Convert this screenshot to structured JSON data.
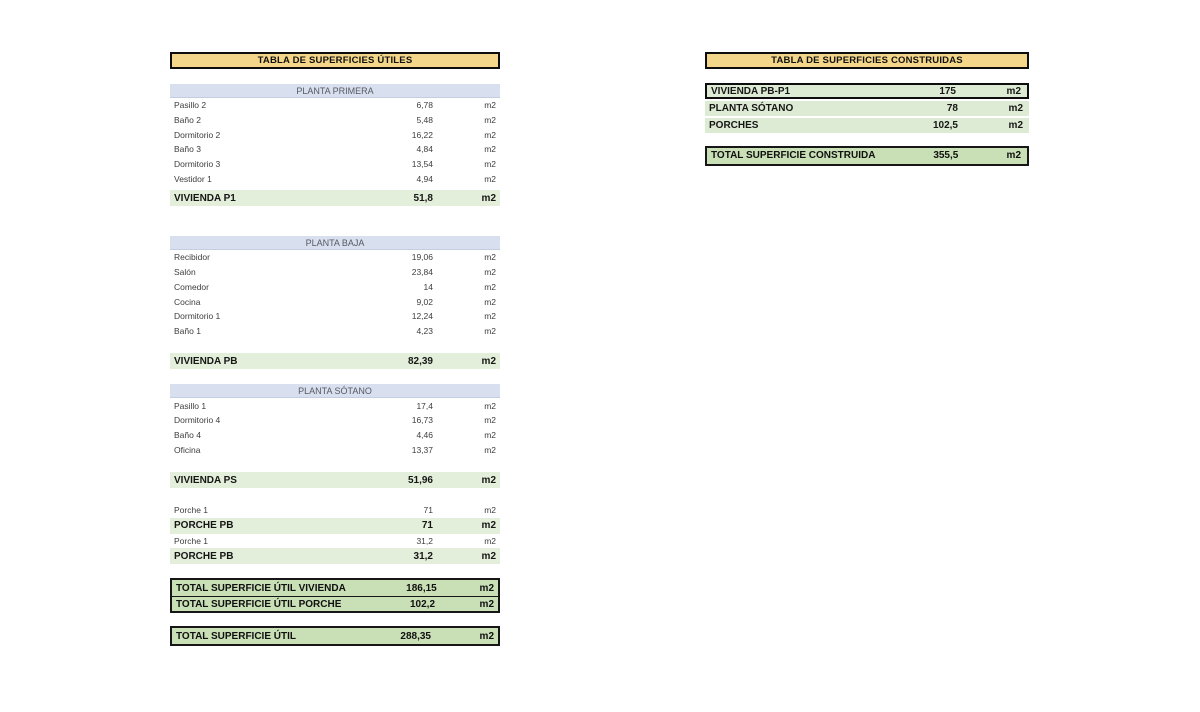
{
  "left_table": {
    "title": "TABLA DE SUPERFICIES ÚTILES",
    "blocks": [
      {
        "kind": "section",
        "label": "PLANTA PRIMERA",
        "gap_before": 15
      },
      {
        "kind": "data",
        "label": "Pasillo 2",
        "value": "6,78",
        "unit": "m2"
      },
      {
        "kind": "data",
        "label": "Baño 2",
        "value": "5,48",
        "unit": "m2"
      },
      {
        "kind": "data",
        "label": "Dormitorio 2",
        "value": "16,22",
        "unit": "m2"
      },
      {
        "kind": "data",
        "label": "Baño 3",
        "value": "4,84",
        "unit": "m2"
      },
      {
        "kind": "data",
        "label": "Dormitorio 3",
        "value": "13,54",
        "unit": "m2"
      },
      {
        "kind": "data",
        "label": "Vestidor 1",
        "value": "4,94",
        "unit": "m2"
      },
      {
        "kind": "subtotal",
        "label": "VIVIENDA P1",
        "value": "51,8",
        "unit": "m2",
        "gap_before": 4
      },
      {
        "kind": "section",
        "label": "PLANTA BAJA",
        "gap_before": 30
      },
      {
        "kind": "data",
        "label": "Recibidor",
        "value": "19,06",
        "unit": "m2"
      },
      {
        "kind": "data",
        "label": "Salón",
        "value": "23,84",
        "unit": "m2"
      },
      {
        "kind": "data",
        "label": "Comedor",
        "value": "14",
        "unit": "m2"
      },
      {
        "kind": "data",
        "label": "Cocina",
        "value": "9,02",
        "unit": "m2"
      },
      {
        "kind": "data",
        "label": "Dormitorio 1",
        "value": "12,24",
        "unit": "m2"
      },
      {
        "kind": "data",
        "label": "Baño 1",
        "value": "4,23",
        "unit": "m2"
      },
      {
        "kind": "subtotal",
        "label": "VIVIENDA PB",
        "value": "82,39",
        "unit": "m2",
        "gap_before": 15
      },
      {
        "kind": "section",
        "label": "PLANTA SÓTANO",
        "gap_before": 15
      },
      {
        "kind": "data",
        "label": "Pasillo 1",
        "value": "17,4",
        "unit": "m2"
      },
      {
        "kind": "data",
        "label": "Dormitorio 4",
        "value": "16,73",
        "unit": "m2"
      },
      {
        "kind": "data",
        "label": "Baño 4",
        "value": "4,46",
        "unit": "m2"
      },
      {
        "kind": "data",
        "label": "Oficina",
        "value": "13,37",
        "unit": "m2"
      },
      {
        "kind": "subtotal",
        "label": "VIVIENDA PS",
        "value": "51,96",
        "unit": "m2",
        "gap_before": 15
      },
      {
        "kind": "data",
        "label": "Porche 1",
        "value": "71",
        "unit": "m2",
        "gap_before": 15
      },
      {
        "kind": "subtotal",
        "label": "PORCHE PB",
        "value": "71",
        "unit": "m2"
      },
      {
        "kind": "data",
        "label": "Porche 1",
        "value": "31,2",
        "unit": "m2"
      },
      {
        "kind": "subtotal",
        "label": "PORCHE PB",
        "value": "31,2",
        "unit": "m2"
      },
      {
        "kind": "total-group",
        "gap_before": 14,
        "rows": [
          {
            "label": "TOTAL SUPERFICIE ÚTIL VIVIENDA",
            "value": "186,15",
            "unit": "m2"
          },
          {
            "label": "TOTAL SUPERFICIE ÚTIL PORCHE",
            "value": "102,2",
            "unit": "m2"
          }
        ]
      },
      {
        "kind": "total-group",
        "gap_before": 13,
        "rows": [
          {
            "label": "TOTAL SUPERFICIE ÚTIL",
            "value": "288,35",
            "unit": "m2"
          }
        ]
      }
    ]
  },
  "right_table": {
    "title": "TABLA DE SUPERFICIES CONSTRUIDAS",
    "blocks": [
      {
        "kind": "row-bordered",
        "label": "VIVIENDA PB-P1",
        "value": "175",
        "unit": "m2",
        "gap_before": 14
      },
      {
        "kind": "row",
        "label": "PLANTA SÓTANO",
        "value": "78",
        "unit": "m2",
        "gap_before": 2
      },
      {
        "kind": "row",
        "label": "PORCHES",
        "value": "102,5",
        "unit": "m2",
        "gap_before": 2
      },
      {
        "kind": "total-group",
        "gap_before": 13,
        "rows": [
          {
            "label": "TOTAL SUPERFICIE CONSTRUIDA",
            "value": "355,5",
            "unit": "m2"
          }
        ]
      }
    ]
  },
  "colors": {
    "title_bg": "#F3D689",
    "section_bg": "#D8DFEE",
    "subtotal_bg": "#E3EFDA",
    "total_bg": "#C9DFB5"
  }
}
